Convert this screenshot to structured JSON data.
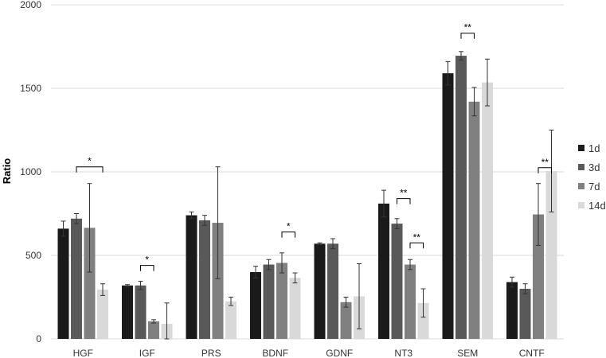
{
  "chart_data": {
    "type": "bar",
    "title": "",
    "xlabel": "",
    "ylabel": "Ratio",
    "ylim": [
      0,
      2000
    ],
    "yticks": [
      0,
      500,
      1000,
      1500,
      2000
    ],
    "grid": true,
    "legend_position": "right",
    "categories": [
      "HGF",
      "IGF",
      "PRS",
      "BDNF",
      "GDNF",
      "NT3",
      "SEM",
      "CNTF"
    ],
    "series": [
      {
        "name": "1d",
        "color": "#1a1a1a",
        "values": [
          660,
          320,
          740,
          400,
          570,
          810,
          1590,
          340
        ],
        "errors": [
          45,
          5,
          20,
          35,
          5,
          80,
          70,
          30
        ]
      },
      {
        "name": "3d",
        "color": "#595959",
        "values": [
          720,
          320,
          710,
          445,
          570,
          690,
          1695,
          300
        ],
        "errors": [
          30,
          25,
          30,
          30,
          30,
          30,
          25,
          30
        ]
      },
      {
        "name": "7d",
        "color": "#808080",
        "values": [
          665,
          105,
          695,
          455,
          220,
          445,
          1420,
          745
        ],
        "errors": [
          265,
          10,
          335,
          60,
          30,
          30,
          85,
          185
        ]
      },
      {
        "name": "14d",
        "color": "#d9d9d9",
        "values": [
          295,
          90,
          225,
          365,
          255,
          215,
          1535,
          1005
        ],
        "errors": [
          35,
          125,
          25,
          30,
          195,
          85,
          140,
          245
        ]
      }
    ],
    "significance": [
      {
        "category": "HGF",
        "from": "3d",
        "to": "14d",
        "label": "*",
        "y": 1030
      },
      {
        "category": "IGF",
        "from": "3d",
        "to": "7d",
        "label": "*",
        "y": 440
      },
      {
        "category": "BDNF",
        "from": "7d",
        "to": "14d",
        "label": "*",
        "y": 640
      },
      {
        "category": "NT3",
        "from": "3d",
        "to": "7d",
        "label": "**",
        "y": 840
      },
      {
        "category": "NT3",
        "from": "7d",
        "to": "14d",
        "label": "**",
        "y": 575
      },
      {
        "category": "SEM",
        "from": "3d",
        "to": "7d",
        "label": "**",
        "y": 1830
      },
      {
        "category": "CNTF",
        "from": "7d",
        "to": "14d",
        "label": "**",
        "y": 1025
      }
    ]
  }
}
